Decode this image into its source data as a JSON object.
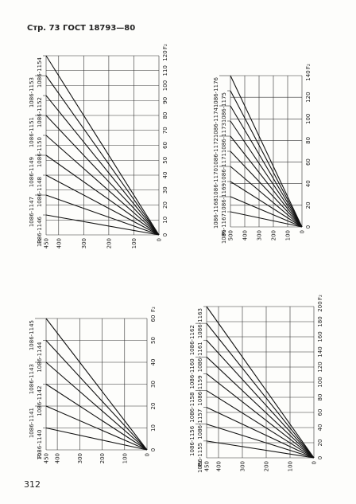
{
  "header": {
    "text": "Стр. 73 ГОСТ 18793—80"
  },
  "page_number": "312",
  "charts": [
    {
      "f2_label": "F₂",
      "p2_label": "P₂",
      "f2_ticks": [
        0,
        10,
        20,
        30,
        40,
        50,
        60,
        70,
        80,
        90,
        100,
        110,
        120
      ],
      "p2_ticks": [
        0,
        100,
        200,
        300,
        400,
        450
      ],
      "lines": [
        "1086-1146",
        "1086-1147",
        "1086-1148",
        "1086-1149",
        "1086-1150",
        "1086-1151",
        "1086-1152",
        "1086-1153",
        "1086-1154"
      ]
    },
    {
      "f2_label": "F₂",
      "p2_label": "P₂",
      "f2_ticks": [
        0,
        20,
        40,
        60,
        80,
        100,
        120,
        140
      ],
      "p2_ticks": [
        0,
        100,
        200,
        300,
        400,
        500
      ],
      "lines": [
        "1086-1167",
        "1086-1168",
        "1086-1169",
        "1086-1170",
        "1086-1171",
        "1086-1172",
        "1086-1173",
        "1086-1174",
        "1086-1175",
        "1086-1176"
      ]
    },
    {
      "f2_label": "F₂",
      "p2_label": "P₂",
      "f2_ticks": [
        0,
        10,
        20,
        30,
        40,
        50,
        60
      ],
      "p2_ticks": [
        0,
        100,
        200,
        300,
        400,
        450
      ],
      "lines": [
        "1086-1140",
        "1086-1141",
        "1086-1142",
        "1086-1143",
        "1086-1144",
        "1086-1145"
      ]
    },
    {
      "f2_label": "F₂",
      "p2_label": "P₂",
      "f2_ticks": [
        0,
        20,
        40,
        60,
        80,
        100,
        120,
        140,
        160,
        180,
        200
      ],
      "p2_ticks": [
        0,
        100,
        200,
        300,
        400,
        450
      ],
      "lines": [
        "1086-1155",
        "1086-1156",
        "1086-1157",
        "1086-1158",
        "1086-1159",
        "1086-1160",
        "1086-1161",
        "1086-1162",
        "1086-1163"
      ]
    }
  ]
}
